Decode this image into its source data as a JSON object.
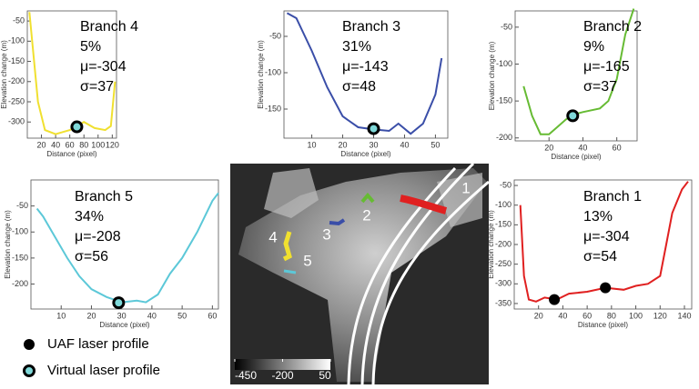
{
  "chart_data": [
    {
      "type": "line",
      "annotations": [
        "Branch 4",
        "5%",
        "μ=-304",
        "σ=37"
      ],
      "xlabel": "Distance (pixel)",
      "ylabel": "Elevation change (m)",
      "color": "#f0e030",
      "x": [
        3,
        8,
        15,
        25,
        40,
        50,
        60,
        70,
        80,
        95,
        110,
        118,
        124
      ],
      "values": [
        -28,
        -120,
        -250,
        -320,
        -330,
        -325,
        -320,
        -310,
        -300,
        -315,
        -320,
        -310,
        -200
      ],
      "xlim": [
        0,
        126
      ],
      "ylim": [
        -340,
        -25
      ],
      "xticks": [
        20,
        40,
        60,
        80,
        100,
        120
      ],
      "yticks": [
        -50,
        -100,
        -150,
        -200,
        -250,
        -300
      ],
      "points": {
        "style": "virtual",
        "x": [
          70
        ],
        "y": [
          -312
        ]
      }
    },
    {
      "type": "line",
      "annotations": [
        "Branch 3",
        "31%",
        "μ=-143",
        "σ=48"
      ],
      "xlabel": "Distance (pixel)",
      "ylabel": "Elevation change (m)",
      "color": "#3a4ea8",
      "x": [
        2,
        5,
        10,
        15,
        20,
        25,
        30,
        35,
        38,
        42,
        46,
        50,
        52
      ],
      "values": [
        -18,
        -25,
        -70,
        -120,
        -160,
        -175,
        -178,
        -180,
        -170,
        -184,
        -170,
        -130,
        -80
      ],
      "xlim": [
        1,
        54
      ],
      "ylim": [
        -190,
        -15
      ],
      "xticks": [
        10,
        20,
        30,
        40,
        50
      ],
      "yticks": [
        -50,
        -100,
        -150
      ],
      "points": {
        "style": "virtual",
        "x": [
          30
        ],
        "y": [
          -177
        ]
      }
    },
    {
      "type": "line",
      "annotations": [
        "Branch 2",
        "9%",
        "μ=-165",
        "σ=37"
      ],
      "xlabel": "Distance (pixel)",
      "ylabel": "Elevation change (m)",
      "color": "#66bb33",
      "x": [
        5,
        10,
        15,
        20,
        25,
        30,
        35,
        40,
        50,
        55,
        60,
        65,
        70
      ],
      "values": [
        -130,
        -170,
        -195,
        -195,
        -185,
        -175,
        -168,
        -165,
        -160,
        -150,
        -120,
        -60,
        -25
      ],
      "xlim": [
        0,
        72
      ],
      "ylim": [
        -204,
        -28
      ],
      "xticks": [
        20,
        40,
        60
      ],
      "yticks": [
        -50,
        -100,
        -150,
        -200
      ],
      "points": {
        "style": "virtual",
        "x": [
          34
        ],
        "y": [
          -170
        ]
      }
    },
    {
      "type": "line",
      "annotations": [
        "Branch 5",
        "34%",
        "μ=-208",
        "σ=56"
      ],
      "xlabel": "Distance (pixel)",
      "ylabel": "Elevation change (m)",
      "color": "#5cc8d8",
      "x": [
        2,
        4,
        8,
        12,
        16,
        20,
        25,
        30,
        35,
        38,
        42,
        46,
        50,
        55,
        60,
        62
      ],
      "values": [
        -55,
        -70,
        -110,
        -150,
        -185,
        -210,
        -225,
        -235,
        -232,
        -235,
        -220,
        -180,
        -150,
        -100,
        -40,
        -25
      ],
      "xlim": [
        0,
        62
      ],
      "ylim": [
        -248,
        0
      ],
      "xticks": [
        10,
        20,
        30,
        40,
        50,
        60
      ],
      "yticks": [
        -50,
        -100,
        -150,
        -200
      ],
      "points": {
        "style": "virtual",
        "x": [
          29
        ],
        "y": [
          -236
        ]
      }
    },
    {
      "type": "line",
      "annotations": [
        "Branch 1",
        "13%",
        "μ=-304",
        "σ=54"
      ],
      "xlabel": "Distance (pixel)",
      "ylabel": "Elevation change (m)",
      "color": "#e02020",
      "x": [
        5,
        8,
        12,
        18,
        25,
        35,
        45,
        60,
        75,
        90,
        100,
        110,
        120,
        125,
        130,
        138,
        143
      ],
      "values": [
        -100,
        -280,
        -340,
        -345,
        -335,
        -340,
        -325,
        -320,
        -310,
        -315,
        -305,
        -300,
        -280,
        -200,
        -120,
        -60,
        -40
      ],
      "xlim": [
        0,
        146
      ],
      "ylim": [
        -364,
        -36
      ],
      "xticks": [
        20,
        40,
        60,
        80,
        100,
        120,
        140
      ],
      "yticks": [
        -50,
        -100,
        -150,
        -200,
        -250,
        -300,
        -350
      ],
      "points": {
        "style": "uaf",
        "x": [
          33,
          75
        ],
        "y": [
          -340,
          -310
        ]
      }
    }
  ],
  "map": {
    "labels": [
      "1",
      "2",
      "3",
      "4",
      "5"
    ],
    "colorbar": {
      "ticks": [
        -450,
        -200,
        50
      ],
      "range": [
        -450,
        50
      ]
    }
  },
  "legend": [
    {
      "label": "UAF laser profile",
      "style": "uaf"
    },
    {
      "label": "Virtual laser profile",
      "style": "virtual"
    }
  ]
}
